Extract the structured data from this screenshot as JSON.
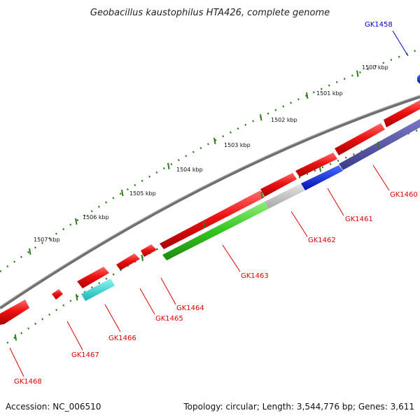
{
  "title": "Geobacillus kaustophilus HTA426, complete genome",
  "footer": {
    "accession": "Accession: NC_006510",
    "summary": "Topology: circular; Length: 3,544,776 bp; Genes: 3,611"
  },
  "scale_labels": [
    "1500 kbp",
    "1501 kbp",
    "1502 kbp",
    "1503 kbp",
    "1504 kbp",
    "1505 kbp",
    "1506 kbp",
    "1507 kbp"
  ],
  "colors": {
    "forward_gene": "#e01010",
    "backbone": "#7a7a7a",
    "tick_green": "#2e7d1e",
    "label_red": "#dd0000",
    "label_blue": "#0000cc"
  },
  "genes": [
    {
      "name": "GK1458",
      "color": "#0000cc"
    },
    {
      "name": "GK1460",
      "color": "#dd0000"
    },
    {
      "name": "GK1461",
      "color": "#dd0000"
    },
    {
      "name": "GK1462",
      "color": "#dd0000"
    },
    {
      "name": "GK1463",
      "color": "#dd0000"
    },
    {
      "name": "GK1464",
      "color": "#dd0000"
    },
    {
      "name": "GK1465",
      "color": "#dd0000"
    },
    {
      "name": "GK1466",
      "color": "#dd0000"
    },
    {
      "name": "GK1467",
      "color": "#dd0000"
    },
    {
      "name": "GK1468",
      "color": "#dd0000"
    }
  ]
}
